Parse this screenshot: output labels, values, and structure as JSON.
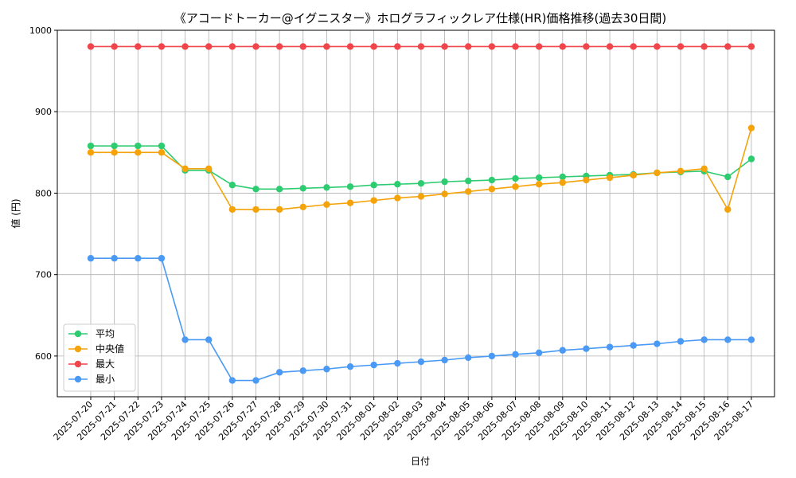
{
  "chart_data": {
    "type": "line",
    "title": "《アコードトーカー@イグニスター》ホログラフィックレア仕様(HR)価格推移(過去30日間)",
    "xlabel": "日付",
    "ylabel": "値 (円)",
    "ylim": [
      550,
      1000
    ],
    "yticks": [
      600,
      700,
      800,
      900,
      1000
    ],
    "grid": true,
    "legend_position": "lower-left",
    "categories": [
      "2025-07-20",
      "2025-07-21",
      "2025-07-22",
      "2025-07-23",
      "2025-07-24",
      "2025-07-25",
      "2025-07-26",
      "2025-07-27",
      "2025-07-28",
      "2025-07-29",
      "2025-07-30",
      "2025-07-31",
      "2025-08-01",
      "2025-08-02",
      "2025-08-03",
      "2025-08-04",
      "2025-08-05",
      "2025-08-06",
      "2025-08-07",
      "2025-08-08",
      "2025-08-09",
      "2025-08-10",
      "2025-08-11",
      "2025-08-12",
      "2025-08-13",
      "2025-08-14",
      "2025-08-15",
      "2025-08-16",
      "2025-08-17"
    ],
    "series": [
      {
        "name": "平均",
        "color": "#2ecc71",
        "values": [
          858,
          858,
          858,
          858,
          828,
          828,
          810,
          805,
          805,
          806,
          807,
          808,
          810,
          811,
          812,
          814,
          815,
          816,
          818,
          819,
          820,
          821,
          822,
          823,
          825,
          826,
          827,
          820,
          842
        ]
      },
      {
        "name": "中央値",
        "color": "#f5a30a",
        "values": [
          850,
          850,
          850,
          850,
          830,
          830,
          780,
          780,
          780,
          783,
          786,
          788,
          791,
          794,
          796,
          799,
          802,
          805,
          808,
          811,
          813,
          816,
          819,
          822,
          825,
          827,
          830,
          780,
          880
        ]
      },
      {
        "name": "最大",
        "color": "#f0454a",
        "values": [
          980,
          980,
          980,
          980,
          980,
          980,
          980,
          980,
          980,
          980,
          980,
          980,
          980,
          980,
          980,
          980,
          980,
          980,
          980,
          980,
          980,
          980,
          980,
          980,
          980,
          980,
          980,
          980,
          980
        ]
      },
      {
        "name": "最小",
        "color": "#4a9af5",
        "values": [
          720,
          720,
          720,
          720,
          620,
          620,
          570,
          570,
          580,
          582,
          584,
          587,
          589,
          591,
          593,
          595,
          598,
          600,
          602,
          604,
          607,
          609,
          611,
          613,
          615,
          618,
          620,
          620,
          620
        ]
      }
    ]
  }
}
